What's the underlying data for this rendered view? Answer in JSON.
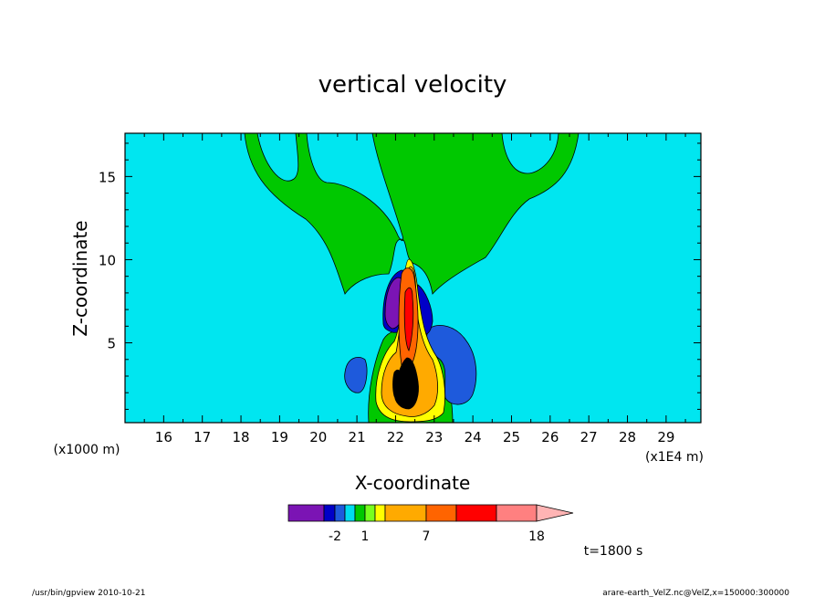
{
  "chart_data": {
    "type": "heatmap",
    "subtype": "filled-contour",
    "title": "vertical velocity",
    "xlabel": "X-coordinate",
    "ylabel": "Z-coordinate",
    "x_units": "(x1E4 m)",
    "y_units": "(x1000 m)",
    "xlim": [
      15.0,
      29.9
    ],
    "ylim": [
      0.2,
      17.6
    ],
    "x_ticks": [
      16,
      17,
      18,
      19,
      20,
      21,
      22,
      23,
      24,
      25,
      26,
      27,
      28,
      29
    ],
    "y_ticks": [
      5,
      10,
      15
    ],
    "colorbar": {
      "colors": [
        "#7b14b4",
        "#0000c8",
        "#1e5adc",
        "#00dcf0",
        "#00c800",
        "#78ff1e",
        "#ffff00",
        "#ffaa00",
        "#ff6400",
        "#ff0000",
        "#ff8080",
        "#ffb4b4"
      ],
      "labeled_levels": [
        "-2",
        "1",
        "7",
        "18"
      ]
    },
    "background_level_color": "#00e6f0",
    "annotations": {
      "time": "t=1800 s",
      "footer_left": "/usr/bin/gpview  2010-10-21",
      "footer_right": "arare-earth_VelZ.nc@VelZ,x=150000:300000"
    }
  }
}
